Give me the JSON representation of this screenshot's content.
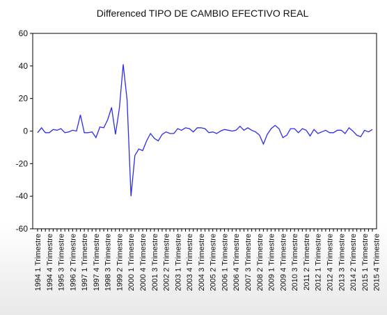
{
  "chart_data": {
    "type": "line",
    "title": "Differenced TIPO DE CAMBIO EFECTIVO REAL",
    "xlabel": "",
    "ylabel": "",
    "ylim": [
      -60,
      60
    ],
    "yticks": [
      60,
      40,
      20,
      0,
      -20,
      -40,
      -60
    ],
    "grid": false,
    "legend": "none",
    "color": "#2b2bef",
    "x_labels": [
      "1994 1 Trimestre",
      "1994 4 Trimestre",
      "1995 3 Trimestre",
      "1996 2 Trimestre",
      "1997 1 Trimestre",
      "1997 4 Trimestre",
      "1998 3 Trimestre",
      "1999 2 Trimestre",
      "2000 1 Trimestre",
      "2000 4 Trimestre",
      "2001 3 Trimestre",
      "2002 2 Trimestre",
      "2003 1 Trimestre",
      "2003 4 Trimestre",
      "2004 3 Trimestre",
      "2005 2 Trimestre",
      "2006 1 Trimestre",
      "2006 4 Trimestre",
      "2007 3 Trimestre",
      "2008 2 Trimestre",
      "2009 1 Trimestre",
      "2009 4 Trimestre",
      "2010 3 Trimestre",
      "2011 2 Trimestre",
      "2012 1 Trimestre",
      "2012 4 Trimestre",
      "2013 3 Trimestre",
      "2014 2 Trimestre",
      "2015 1 Trimestre",
      "2015 4 Trimestre"
    ],
    "values": [
      -1,
      2,
      -1,
      -1,
      1,
      0.5,
      1.5,
      -1,
      -0.5,
      0.5,
      0,
      10,
      -1,
      -1,
      -0.5,
      -4,
      2.5,
      2,
      7,
      14.5,
      -2,
      14,
      41,
      19,
      -40,
      -15,
      -11,
      -12,
      -6,
      -1.5,
      -4.5,
      -6,
      -2,
      -0.5,
      -1.5,
      -1.5,
      1.5,
      0.5,
      2,
      1.5,
      -0.5,
      2,
      2,
      1.5,
      -1,
      -0.5,
      -1.5,
      0,
      1,
      0.5,
      0,
      0.5,
      3,
      0.5,
      2,
      0.5,
      -0.5,
      -2.5,
      -8,
      -2,
      1.5,
      3.5,
      1.5,
      -4,
      -2.5,
      1.5,
      1.5,
      -1,
      1.5,
      0.5,
      -3,
      1,
      -1.5,
      -0.5,
      0.5,
      -1,
      -1,
      0.5,
      0.5,
      -1.5,
      2,
      0,
      -2.5,
      -3.5,
      0.5,
      -0.5,
      1
    ]
  }
}
